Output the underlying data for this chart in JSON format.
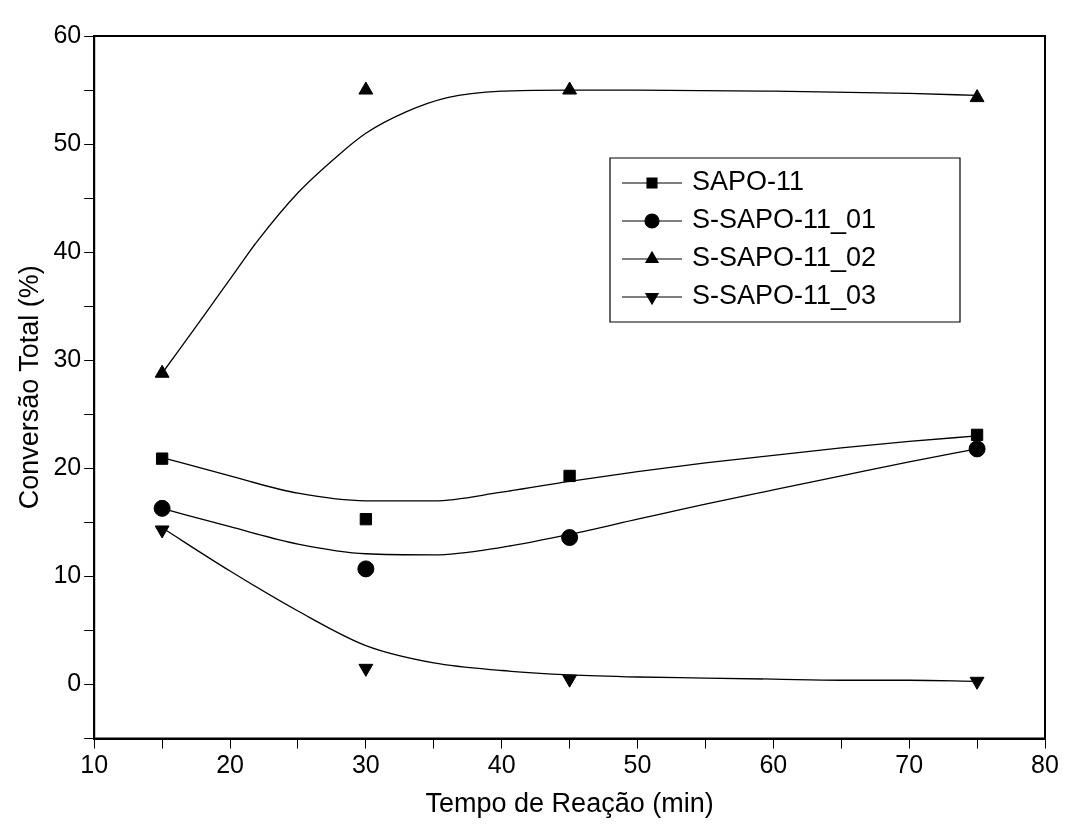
{
  "chart_data": {
    "type": "scatter",
    "xlabel": "Tempo de Reação (min)",
    "ylabel": "Conversão Total (%)",
    "xlim": [
      10,
      80
    ],
    "xticks": [
      10,
      {
        "value": 15,
        "label": null
      },
      20,
      {
        "value": 25,
        "label": null
      },
      30,
      {
        "value": 35,
        "label": null
      },
      40,
      {
        "value": 45,
        "label": null
      },
      50,
      {
        "value": 55,
        "label": null
      },
      60,
      {
        "value": 65,
        "label": null
      },
      70,
      {
        "value": 75,
        "label": null
      },
      80
    ],
    "ylim": [
      -5,
      60
    ],
    "yticks": [
      {
        "value": -5,
        "label": null
      },
      0,
      {
        "value": 5,
        "label": null
      },
      10,
      {
        "value": 15,
        "label": null
      },
      20,
      {
        "value": 25,
        "label": null
      },
      30,
      {
        "value": 35,
        "label": null
      },
      40,
      {
        "value": 45,
        "label": null
      },
      50,
      {
        "value": 55,
        "label": null
      },
      60
    ],
    "grid": false,
    "legend": "top right",
    "x": [
      15,
      30,
      45,
      75
    ],
    "series": [
      {
        "name": "SAPO-11",
        "marker": "square",
        "color": "#000000",
        "values": [
          20.9,
          15.3,
          19.3,
          23.1
        ]
      },
      {
        "name": "S-SAPO-11_01",
        "marker": "circle",
        "color": "#000000",
        "values": [
          16.3,
          10.7,
          13.6,
          21.8
        ]
      },
      {
        "name": "S-SAPO-11_02",
        "marker": "triangle",
        "color": "#000000",
        "values": [
          28.8,
          55.0,
          55.0,
          54.3
        ]
      },
      {
        "name": "S-SAPO-11_03",
        "marker": "triangle-down",
        "color": "#000000",
        "values": [
          14.3,
          1.5,
          0.5,
          0.3
        ]
      },
      {
        "type": "line",
        "marker": "none",
        "color": "#000000",
        "x": [
          15,
          20,
          25,
          30,
          35,
          40,
          45,
          50,
          55,
          60,
          65,
          70,
          75
        ],
        "values": [
          21,
          19.3,
          17.7,
          17.0,
          17.0,
          17.8,
          18.8,
          19.7,
          20.5,
          21.2,
          21.9,
          22.5,
          23.0
        ]
      },
      {
        "type": "line",
        "marker": "none",
        "color": "#000000",
        "x": [
          15,
          20,
          25,
          30,
          35,
          40,
          45,
          50,
          55,
          60,
          65,
          70,
          75
        ],
        "values": [
          16.3,
          14.6,
          13.0,
          12.1,
          12.0,
          12.7,
          13.9,
          15.3,
          16.7,
          18.0,
          19.3,
          20.6,
          21.8
        ]
      },
      {
        "type": "line",
        "marker": "none",
        "color": "#000000",
        "x": [
          15,
          18,
          20,
          22,
          25,
          28,
          30,
          33,
          36,
          40,
          45,
          50,
          60,
          70,
          75
        ],
        "values": [
          28.8,
          34,
          37.5,
          41,
          45.5,
          49,
          51,
          53,
          54.3,
          54.9,
          55,
          55,
          54.9,
          54.7,
          54.5
        ]
      },
      {
        "type": "line",
        "marker": "none",
        "color": "#000000",
        "x": [
          15,
          20,
          25,
          30,
          35,
          40,
          45,
          50,
          55,
          60,
          65,
          70,
          75
        ],
        "values": [
          14.5,
          10.5,
          6.8,
          3.6,
          2.0,
          1.3,
          0.9,
          0.7,
          0.6,
          0.5,
          0.4,
          0.4,
          0.3
        ]
      }
    ]
  }
}
